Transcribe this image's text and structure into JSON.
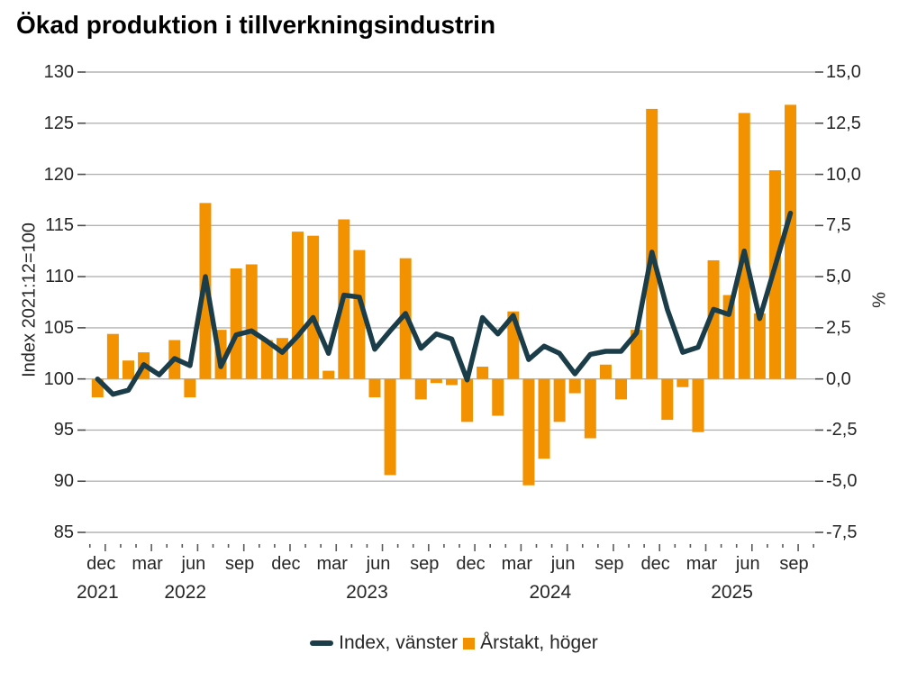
{
  "title": "Ökad produktion i tillverkningsindustrin",
  "colors": {
    "bar_orange": "#F29200",
    "line_teal": "#1B3D49",
    "gridline": "#b4b4b4",
    "tick": "#4d4d4d",
    "text": "#262626"
  },
  "chart": {
    "left_axis": {
      "title": "Index 2021:12=100",
      "labels": [
        "130",
        "125",
        "120",
        "115",
        "110",
        "105",
        "100",
        "95",
        "90",
        "85"
      ]
    },
    "right_axis": {
      "title": "%",
      "labels": [
        "15,0",
        "12,5",
        "10,0",
        "7,5",
        "5,0",
        "2,5",
        "0,0",
        "-2,5",
        "-5,0",
        "-7,5"
      ]
    },
    "x_axis": {
      "month_labels": [
        {
          "text": "dec",
          "m": 0
        },
        {
          "text": "mar",
          "m": 3
        },
        {
          "text": "jun",
          "m": 6
        },
        {
          "text": "sep",
          "m": 9
        },
        {
          "text": "dec",
          "m": 12
        },
        {
          "text": "mar",
          "m": 15
        },
        {
          "text": "jun",
          "m": 18
        },
        {
          "text": "sep",
          "m": 21
        },
        {
          "text": "dec",
          "m": 24
        },
        {
          "text": "mar",
          "m": 27
        },
        {
          "text": "jun",
          "m": 30
        },
        {
          "text": "sep",
          "m": 33
        },
        {
          "text": "dec",
          "m": 36
        },
        {
          "text": "mar",
          "m": 39
        },
        {
          "text": "jun",
          "m": 42
        },
        {
          "text": "sep",
          "m": 45
        }
      ],
      "year_labels": [
        {
          "text": "2021",
          "m": 0
        },
        {
          "text": "2022",
          "m": 5.7
        },
        {
          "text": "2023",
          "m": 17.5
        },
        {
          "text": "2024",
          "m": 29.4
        },
        {
          "text": "2025",
          "m": 41.2
        }
      ]
    },
    "legend": [
      {
        "label": "Index, vänster",
        "marker": "line",
        "color": "#1B3D49"
      },
      {
        "label": "Årstakt, höger",
        "marker": "square",
        "color": "#F29200"
      }
    ]
  },
  "chart_data": {
    "type": "line+bar",
    "title": "Ökad produktion i tillverkningsindustrin",
    "months": [
      "2021-12",
      "2022-01",
      "2022-02",
      "2022-03",
      "2022-04",
      "2022-05",
      "2022-06",
      "2022-07",
      "2022-08",
      "2022-09",
      "2022-10",
      "2022-11",
      "2022-12",
      "2023-01",
      "2023-02",
      "2023-03",
      "2023-04",
      "2023-05",
      "2023-06",
      "2023-07",
      "2023-08",
      "2023-09",
      "2023-10",
      "2023-11",
      "2023-12",
      "2024-01",
      "2024-02",
      "2024-03",
      "2024-04",
      "2024-05",
      "2024-06",
      "2024-07",
      "2024-08",
      "2024-09",
      "2024-10",
      "2024-11",
      "2024-12",
      "2025-01",
      "2025-02",
      "2025-03",
      "2025-04",
      "2025-05",
      "2025-06",
      "2025-07",
      "2025-08",
      "2025-09"
    ],
    "series": [
      {
        "name": "Index, vänster",
        "type": "line",
        "axis": "left",
        "values": [
          100.0,
          98.5,
          98.9,
          101.4,
          100.4,
          102.0,
          101.3,
          110.0,
          101.2,
          104.3,
          104.7,
          103.7,
          102.6,
          104.2,
          106.0,
          102.5,
          108.2,
          108.0,
          102.9,
          104.7,
          106.4,
          103.0,
          104.4,
          103.9,
          99.9,
          106.0,
          104.4,
          106.2,
          101.9,
          103.2,
          102.5,
          100.5,
          102.4,
          102.7,
          102.7,
          104.5,
          112.4,
          106.8,
          102.6,
          103.1,
          106.8,
          106.3,
          112.5,
          105.9,
          111.0,
          116.2
        ]
      },
      {
        "name": "Årstakt, höger",
        "type": "bar",
        "axis": "right",
        "values": [
          -0.9,
          2.2,
          0.9,
          1.3,
          0.0,
          1.9,
          -0.9,
          8.6,
          2.4,
          5.4,
          5.6,
          1.9,
          2.0,
          7.2,
          7.0,
          0.4,
          7.8,
          6.3,
          -0.9,
          -4.7,
          5.9,
          -1.0,
          -0.2,
          -0.3,
          -2.1,
          0.6,
          -1.8,
          3.3,
          -5.2,
          -3.9,
          -2.1,
          -0.7,
          -2.9,
          0.7,
          -1.0,
          2.4,
          13.2,
          -2.0,
          -0.4,
          -2.6,
          5.8,
          4.1,
          13.0,
          3.2,
          10.2,
          13.4
        ]
      }
    ],
    "left_ylim": [
      85,
      130
    ],
    "right_ylim": [
      -7.5,
      15.0
    ],
    "left_ticks": [
      130,
      125,
      120,
      115,
      110,
      105,
      100,
      95,
      90,
      85
    ],
    "right_ticks": [
      15.0,
      12.5,
      10.0,
      7.5,
      5.0,
      2.5,
      0.0,
      -2.5,
      -5.0,
      -7.5
    ],
    "grid": true,
    "legend_position": "bottom"
  }
}
